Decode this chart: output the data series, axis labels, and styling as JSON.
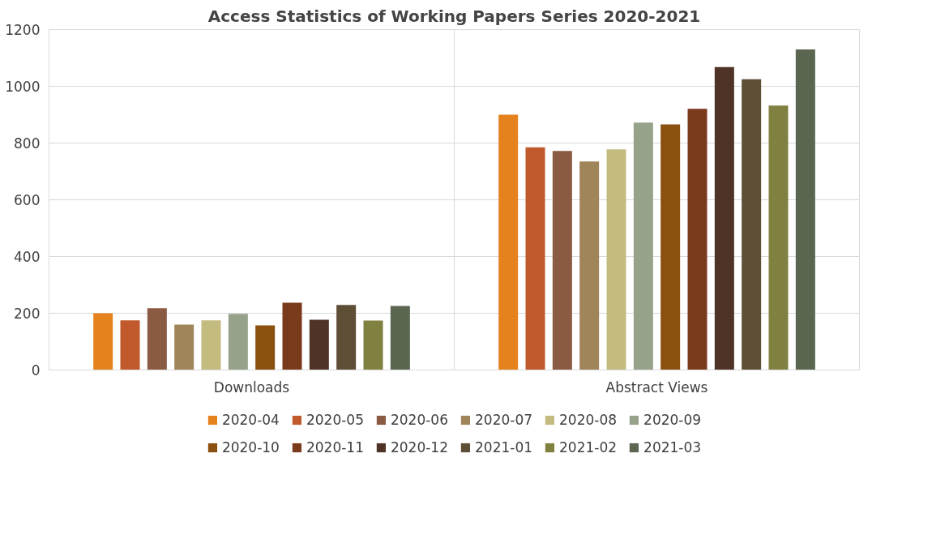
{
  "chart_data": {
    "type": "bar",
    "title": "Access Statistics of Working Papers Series 2020-2021",
    "categories": [
      "Downloads",
      "Abstract Views"
    ],
    "series": [
      {
        "name": "2020-04",
        "color": "#e6821e",
        "values": [
          200,
          900
        ]
      },
      {
        "name": "2020-05",
        "color": "#c05a2c",
        "values": [
          175,
          785
        ]
      },
      {
        "name": "2020-06",
        "color": "#8b5a42",
        "values": [
          218,
          772
        ]
      },
      {
        "name": "2020-07",
        "color": "#a0845a",
        "values": [
          160,
          735
        ]
      },
      {
        "name": "2020-08",
        "color": "#c4bb80",
        "values": [
          175,
          778
        ]
      },
      {
        "name": "2020-09",
        "color": "#97a28a",
        "values": [
          198,
          872
        ]
      },
      {
        "name": "2020-10",
        "color": "#8b4f0f",
        "values": [
          157,
          866
        ]
      },
      {
        "name": "2020-11",
        "color": "#7a3a1c",
        "values": [
          237,
          921
        ]
      },
      {
        "name": "2020-12",
        "color": "#4f3326",
        "values": [
          177,
          1068
        ]
      },
      {
        "name": "2021-01",
        "color": "#5f4e36",
        "values": [
          229,
          1025
        ]
      },
      {
        "name": "2021-02",
        "color": "#808040",
        "values": [
          174,
          932
        ]
      },
      {
        "name": "2021-03",
        "color": "#5a6650",
        "values": [
          226,
          1130
        ]
      }
    ],
    "ylim": [
      0,
      1200
    ],
    "yticks": [
      0,
      200,
      400,
      600,
      800,
      1000,
      1200
    ],
    "grid": "y",
    "legend": "bottom"
  }
}
